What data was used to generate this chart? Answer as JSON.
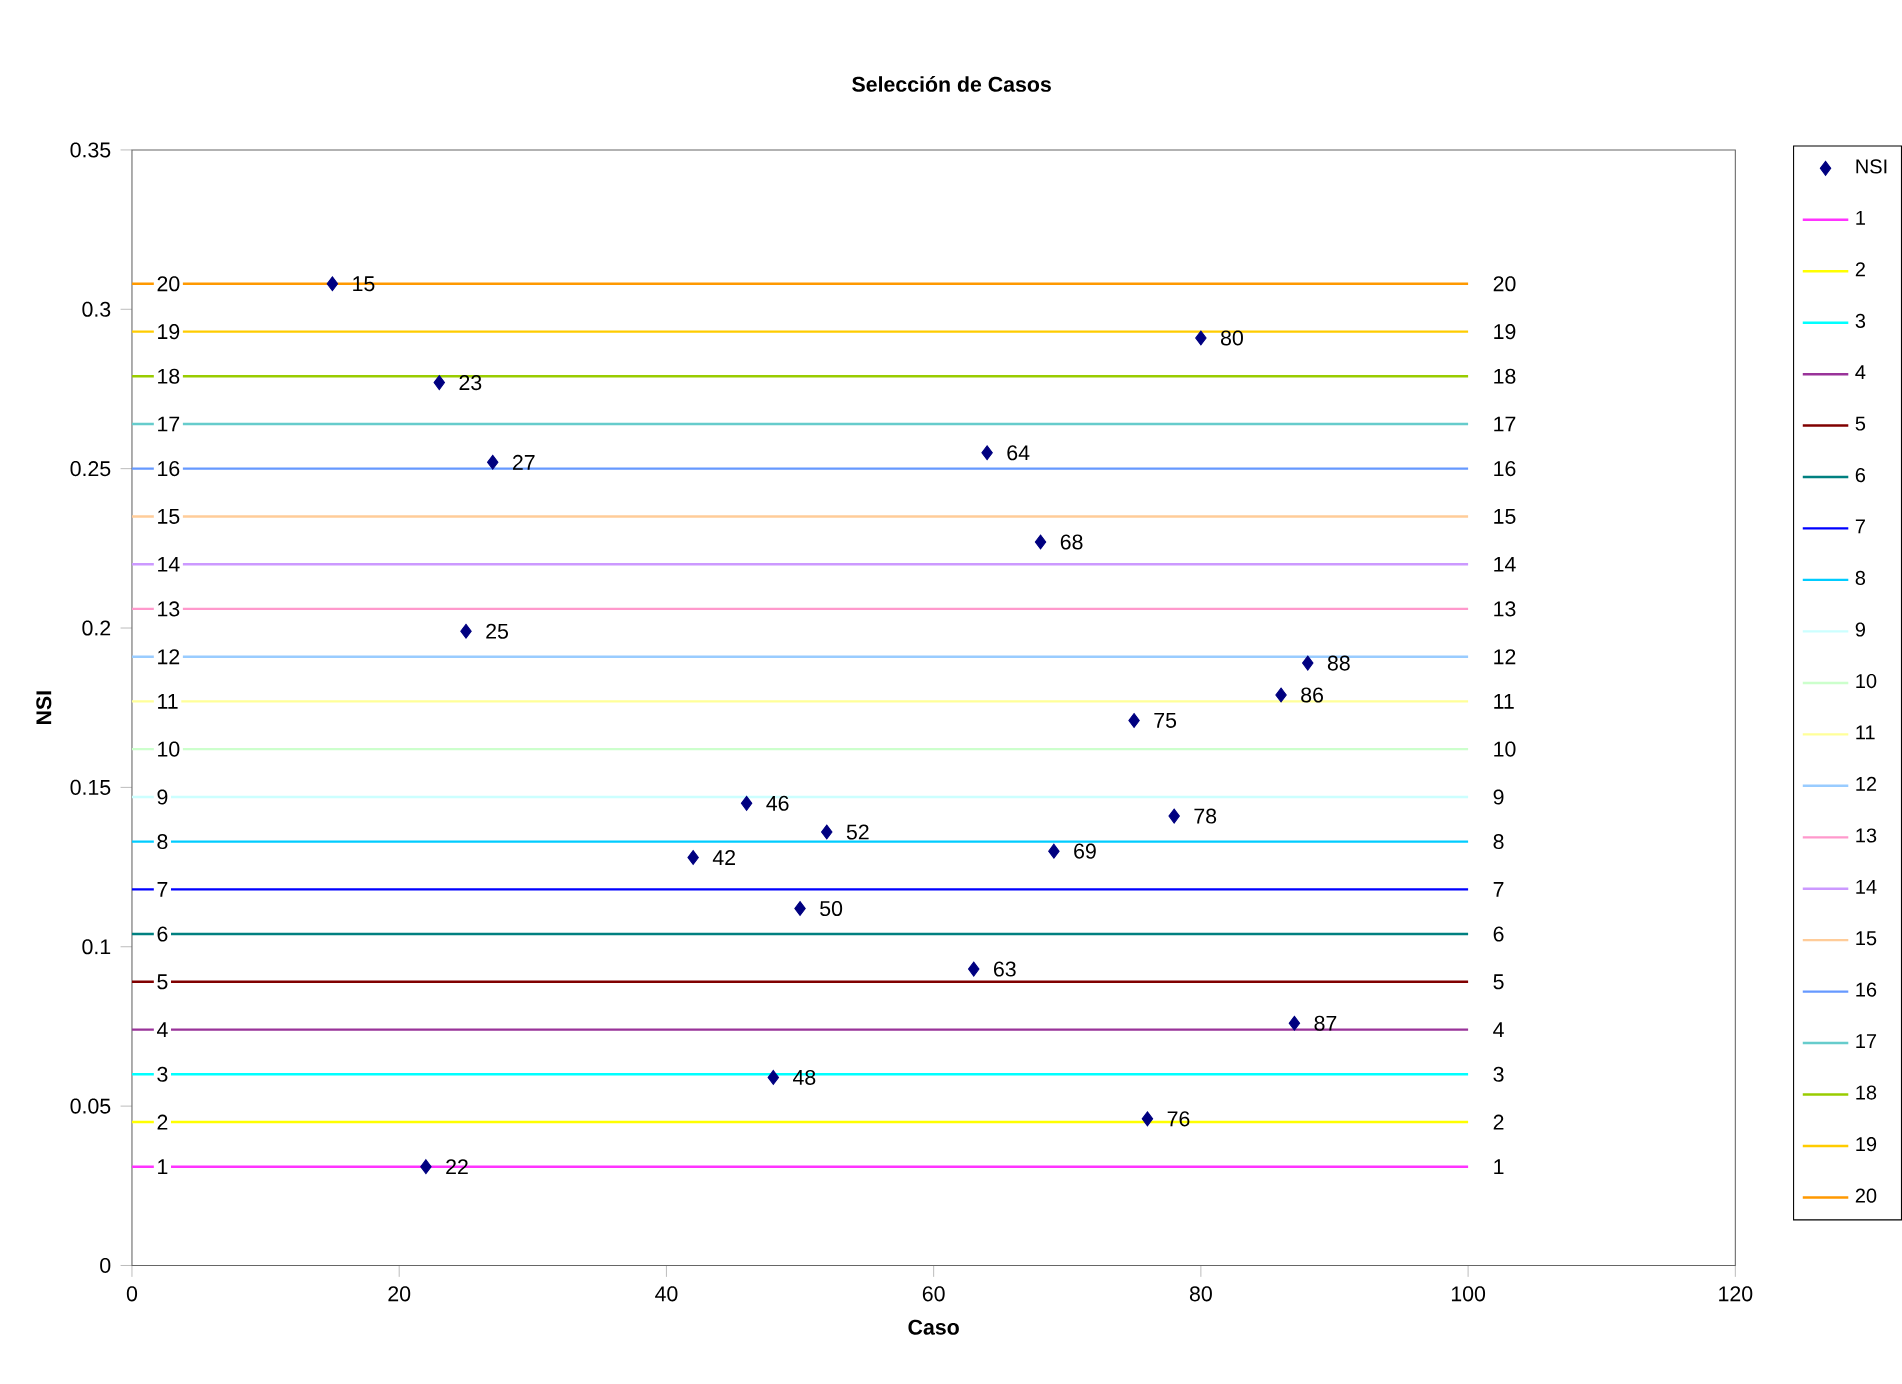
{
  "chart_data": {
    "type": "scatter",
    "title": "Selección de Casos",
    "xlabel": "Caso",
    "ylabel": "NSI",
    "xlim": [
      0,
      120
    ],
    "xticks": [
      0,
      20,
      40,
      60,
      80,
      100,
      120
    ],
    "ylim": [
      0,
      0.35
    ],
    "yticks": [
      0,
      0.05,
      0.1,
      0.15,
      0.2,
      0.25,
      0.3,
      0.35
    ],
    "legend": "right",
    "annotations": [
      {
        "text": "15",
        "x": 15,
        "y": 0.308
      },
      {
        "text": "22",
        "x": 22,
        "y": 0.031
      },
      {
        "text": "23",
        "x": 23,
        "y": 0.277
      },
      {
        "text": "25",
        "x": 25,
        "y": 0.199
      },
      {
        "text": "27",
        "x": 27,
        "y": 0.252
      },
      {
        "text": "42",
        "x": 42,
        "y": 0.128
      },
      {
        "text": "46",
        "x": 46,
        "y": 0.145
      },
      {
        "text": "48",
        "x": 48,
        "y": 0.059
      },
      {
        "text": "50",
        "x": 50,
        "y": 0.112
      },
      {
        "text": "52",
        "x": 52,
        "y": 0.136
      },
      {
        "text": "63",
        "x": 63,
        "y": 0.093
      },
      {
        "text": "64",
        "x": 64,
        "y": 0.255
      },
      {
        "text": "68",
        "x": 68,
        "y": 0.227
      },
      {
        "text": "69",
        "x": 69,
        "y": 0.13
      },
      {
        "text": "75",
        "x": 75,
        "y": 0.171
      },
      {
        "text": "76",
        "x": 76,
        "y": 0.046
      },
      {
        "text": "78",
        "x": 78,
        "y": 0.141
      },
      {
        "text": "80",
        "x": 80,
        "y": 0.291
      },
      {
        "text": "86",
        "x": 86,
        "y": 0.179
      },
      {
        "text": "87",
        "x": 87,
        "y": 0.076
      },
      {
        "text": "88",
        "x": 88,
        "y": 0.189
      }
    ],
    "series": [
      {
        "name": "NSI",
        "color": "#000080",
        "marker": "diamond",
        "x": [
          15,
          22,
          23,
          25,
          27,
          42,
          46,
          48,
          50,
          52,
          63,
          64,
          68,
          69,
          75,
          76,
          78,
          80,
          86,
          87,
          88
        ],
        "values": [
          0.308,
          0.031,
          0.277,
          0.199,
          0.252,
          0.128,
          0.145,
          0.059,
          0.112,
          0.136,
          0.093,
          0.255,
          0.227,
          0.13,
          0.171,
          0.046,
          0.141,
          0.291,
          0.179,
          0.076,
          0.189
        ]
      },
      {
        "name": "1",
        "type": "line",
        "color": "#ff33ff",
        "x": [
          0,
          100
        ],
        "values": [
          0.031,
          0.031
        ]
      },
      {
        "name": "2",
        "type": "line",
        "color": "#ffff00",
        "x": [
          0,
          100
        ],
        "values": [
          0.045,
          0.045
        ]
      },
      {
        "name": "3",
        "type": "line",
        "color": "#00ffff",
        "x": [
          0,
          100
        ],
        "values": [
          0.06,
          0.06
        ]
      },
      {
        "name": "4",
        "type": "line",
        "color": "#993399",
        "x": [
          0,
          100
        ],
        "values": [
          0.074,
          0.074
        ]
      },
      {
        "name": "5",
        "type": "line",
        "color": "#800000",
        "x": [
          0,
          100
        ],
        "values": [
          0.089,
          0.089
        ]
      },
      {
        "name": "6",
        "type": "line",
        "color": "#008080",
        "x": [
          0,
          100
        ],
        "values": [
          0.104,
          0.104
        ]
      },
      {
        "name": "7",
        "type": "line",
        "color": "#0000ff",
        "x": [
          0,
          100
        ],
        "values": [
          0.118,
          0.118
        ]
      },
      {
        "name": "8",
        "type": "line",
        "color": "#00ccff",
        "x": [
          0,
          100
        ],
        "values": [
          0.133,
          0.133
        ]
      },
      {
        "name": "9",
        "type": "line",
        "color": "#ccffff",
        "x": [
          0,
          100
        ],
        "values": [
          0.147,
          0.147
        ]
      },
      {
        "name": "10",
        "type": "line",
        "color": "#ccffcc",
        "x": [
          0,
          100
        ],
        "values": [
          0.162,
          0.162
        ]
      },
      {
        "name": "11",
        "type": "line",
        "color": "#ffff99",
        "x": [
          0,
          100
        ],
        "values": [
          0.177,
          0.177
        ]
      },
      {
        "name": "12",
        "type": "line",
        "color": "#99ccff",
        "x": [
          0,
          100
        ],
        "values": [
          0.191,
          0.191
        ]
      },
      {
        "name": "13",
        "type": "line",
        "color": "#ff99cc",
        "x": [
          0,
          100
        ],
        "values": [
          0.206,
          0.206
        ]
      },
      {
        "name": "14",
        "type": "line",
        "color": "#cc99ff",
        "x": [
          0,
          100
        ],
        "values": [
          0.22,
          0.22
        ]
      },
      {
        "name": "15",
        "type": "line",
        "color": "#ffcc99",
        "x": [
          0,
          100
        ],
        "values": [
          0.235,
          0.235
        ]
      },
      {
        "name": "16",
        "type": "line",
        "color": "#6699ff",
        "x": [
          0,
          100
        ],
        "values": [
          0.25,
          0.25
        ]
      },
      {
        "name": "17",
        "type": "line",
        "color": "#66cccc",
        "x": [
          0,
          100
        ],
        "values": [
          0.264,
          0.264
        ]
      },
      {
        "name": "18",
        "type": "line",
        "color": "#99cc00",
        "x": [
          0,
          100
        ],
        "values": [
          0.279,
          0.279
        ]
      },
      {
        "name": "19",
        "type": "line",
        "color": "#ffcc00",
        "x": [
          0,
          100
        ],
        "values": [
          0.293,
          0.293
        ]
      },
      {
        "name": "20",
        "type": "line",
        "color": "#ff9900",
        "x": [
          0,
          100
        ],
        "values": [
          0.308,
          0.308
        ]
      }
    ]
  }
}
